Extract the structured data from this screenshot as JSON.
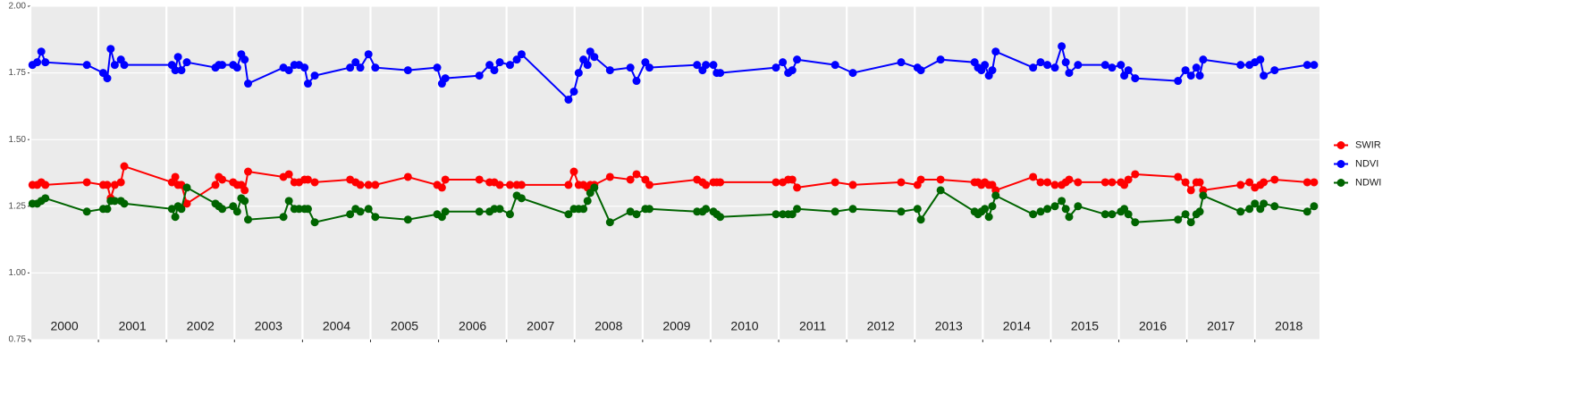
{
  "chart_data": {
    "type": "line",
    "xlim": [
      2000,
      2018.95
    ],
    "xticks": [
      2000,
      2001,
      2002,
      2003,
      2004,
      2005,
      2006,
      2007,
      2008,
      2009,
      2010,
      2011,
      2012,
      2013,
      2014,
      2015,
      2016,
      2017,
      2018
    ],
    "ylim": [
      0.75,
      2.0
    ],
    "yticks": [
      {
        "value": 0.75,
        "label": "0.75"
      },
      {
        "value": 1.0,
        "label": "1.00"
      },
      {
        "value": 1.25,
        "label": "1.25"
      },
      {
        "value": 1.5,
        "label": "1.50"
      },
      {
        "value": 1.75,
        "label": "1.75"
      },
      {
        "value": 2.0,
        "label": "2.00"
      }
    ],
    "grid": true,
    "legend": "right",
    "x": [
      2000.03,
      2000.1,
      2000.16,
      2000.22,
      2000.83,
      2001.07,
      2001.13,
      2001.18,
      2001.24,
      2001.33,
      2001.38,
      2002.08,
      2002.13,
      2002.17,
      2002.22,
      2002.3,
      2002.72,
      2002.77,
      2002.82,
      2002.98,
      2003.04,
      2003.1,
      2003.15,
      2003.2,
      2003.72,
      2003.8,
      2003.88,
      2003.95,
      2004.03,
      2004.08,
      2004.18,
      2004.7,
      2004.78,
      2004.85,
      2004.97,
      2005.07,
      2005.55,
      2005.98,
      2006.05,
      2006.1,
      2006.6,
      2006.75,
      2006.82,
      2006.9,
      2007.05,
      2007.15,
      2007.22,
      2007.91,
      2007.99,
      2008.06,
      2008.13,
      2008.19,
      2008.23,
      2008.29,
      2008.52,
      2008.82,
      2008.91,
      2009.04,
      2009.1,
      2009.8,
      2009.88,
      2009.93,
      2010.04,
      2010.09,
      2010.14,
      2010.96,
      2011.06,
      2011.14,
      2011.2,
      2011.27,
      2011.83,
      2012.09,
      2012.8,
      2013.04,
      2013.09,
      2013.38,
      2013.88,
      2013.93,
      2013.98,
      2014.03,
      2014.09,
      2014.14,
      2014.19,
      2014.74,
      2014.85,
      2014.95,
      2015.06,
      2015.16,
      2015.22,
      2015.27,
      2015.4,
      2015.8,
      2015.9,
      2016.03,
      2016.08,
      2016.14,
      2016.24,
      2016.87,
      2016.98,
      2017.06,
      2017.14,
      2017.19,
      2017.24,
      2017.79,
      2017.92,
      2018.0,
      2018.08,
      2018.13,
      2018.29,
      2018.77,
      2018.87
    ],
    "series": [
      {
        "name": "SWIR",
        "color": "#ff0000",
        "values": [
          1.33,
          1.33,
          1.34,
          1.33,
          1.34,
          1.33,
          1.33,
          1.28,
          1.33,
          1.34,
          1.4,
          1.34,
          1.36,
          1.33,
          1.33,
          1.26,
          1.33,
          1.36,
          1.35,
          1.34,
          1.33,
          1.33,
          1.31,
          1.38,
          1.36,
          1.37,
          1.34,
          1.34,
          1.35,
          1.35,
          1.34,
          1.35,
          1.34,
          1.33,
          1.33,
          1.33,
          1.36,
          1.33,
          1.32,
          1.35,
          1.35,
          1.34,
          1.34,
          1.33,
          1.33,
          1.33,
          1.33,
          1.33,
          1.38,
          1.33,
          1.33,
          1.32,
          1.33,
          1.33,
          1.36,
          1.35,
          1.37,
          1.35,
          1.33,
          1.35,
          1.34,
          1.33,
          1.34,
          1.34,
          1.34,
          1.34,
          1.34,
          1.35,
          1.35,
          1.32,
          1.34,
          1.33,
          1.34,
          1.33,
          1.35,
          1.35,
          1.34,
          1.34,
          1.33,
          1.34,
          1.33,
          1.33,
          1.31,
          1.36,
          1.34,
          1.34,
          1.33,
          1.33,
          1.34,
          1.35,
          1.34,
          1.34,
          1.34,
          1.34,
          1.33,
          1.35,
          1.37,
          1.36,
          1.34,
          1.31,
          1.34,
          1.34,
          1.31,
          1.33,
          1.34,
          1.32,
          1.33,
          1.34,
          1.35,
          1.34,
          1.34
        ]
      },
      {
        "name": "NDVI",
        "color": "#0000ff",
        "values": [
          1.78,
          1.79,
          1.83,
          1.79,
          1.78,
          1.75,
          1.73,
          1.84,
          1.78,
          1.8,
          1.78,
          1.78,
          1.76,
          1.81,
          1.76,
          1.79,
          1.77,
          1.78,
          1.78,
          1.78,
          1.77,
          1.82,
          1.8,
          1.71,
          1.77,
          1.76,
          1.78,
          1.78,
          1.77,
          1.71,
          1.74,
          1.77,
          1.79,
          1.77,
          1.82,
          1.77,
          1.76,
          1.77,
          1.71,
          1.73,
          1.74,
          1.78,
          1.76,
          1.79,
          1.78,
          1.8,
          1.82,
          1.65,
          1.68,
          1.75,
          1.8,
          1.78,
          1.83,
          1.81,
          1.76,
          1.77,
          1.72,
          1.79,
          1.77,
          1.78,
          1.76,
          1.78,
          1.78,
          1.75,
          1.75,
          1.77,
          1.79,
          1.75,
          1.76,
          1.8,
          1.78,
          1.75,
          1.79,
          1.77,
          1.76,
          1.8,
          1.79,
          1.77,
          1.76,
          1.78,
          1.74,
          1.76,
          1.83,
          1.77,
          1.79,
          1.78,
          1.77,
          1.85,
          1.79,
          1.75,
          1.78,
          1.78,
          1.77,
          1.78,
          1.74,
          1.76,
          1.73,
          1.72,
          1.76,
          1.74,
          1.77,
          1.74,
          1.8,
          1.78,
          1.78,
          1.79,
          1.8,
          1.74,
          1.76,
          1.78,
          1.78
        ]
      },
      {
        "name": "NDWI",
        "color": "#006400",
        "values": [
          1.26,
          1.26,
          1.27,
          1.28,
          1.23,
          1.24,
          1.24,
          1.27,
          1.27,
          1.27,
          1.26,
          1.24,
          1.21,
          1.25,
          1.24,
          1.32,
          1.26,
          1.25,
          1.24,
          1.25,
          1.23,
          1.28,
          1.27,
          1.2,
          1.21,
          1.27,
          1.24,
          1.24,
          1.24,
          1.24,
          1.19,
          1.22,
          1.24,
          1.23,
          1.24,
          1.21,
          1.2,
          1.22,
          1.21,
          1.23,
          1.23,
          1.23,
          1.24,
          1.24,
          1.22,
          1.29,
          1.28,
          1.22,
          1.24,
          1.24,
          1.24,
          1.27,
          1.3,
          1.32,
          1.19,
          1.23,
          1.22,
          1.24,
          1.24,
          1.23,
          1.23,
          1.24,
          1.23,
          1.22,
          1.21,
          1.22,
          1.22,
          1.22,
          1.22,
          1.24,
          1.23,
          1.24,
          1.23,
          1.24,
          1.2,
          1.31,
          1.23,
          1.22,
          1.23,
          1.24,
          1.21,
          1.25,
          1.29,
          1.22,
          1.23,
          1.24,
          1.25,
          1.27,
          1.24,
          1.21,
          1.25,
          1.22,
          1.22,
          1.23,
          1.24,
          1.22,
          1.19,
          1.2,
          1.22,
          1.19,
          1.22,
          1.23,
          1.29,
          1.23,
          1.24,
          1.26,
          1.24,
          1.26,
          1.25,
          1.23,
          1.25
        ]
      }
    ]
  }
}
